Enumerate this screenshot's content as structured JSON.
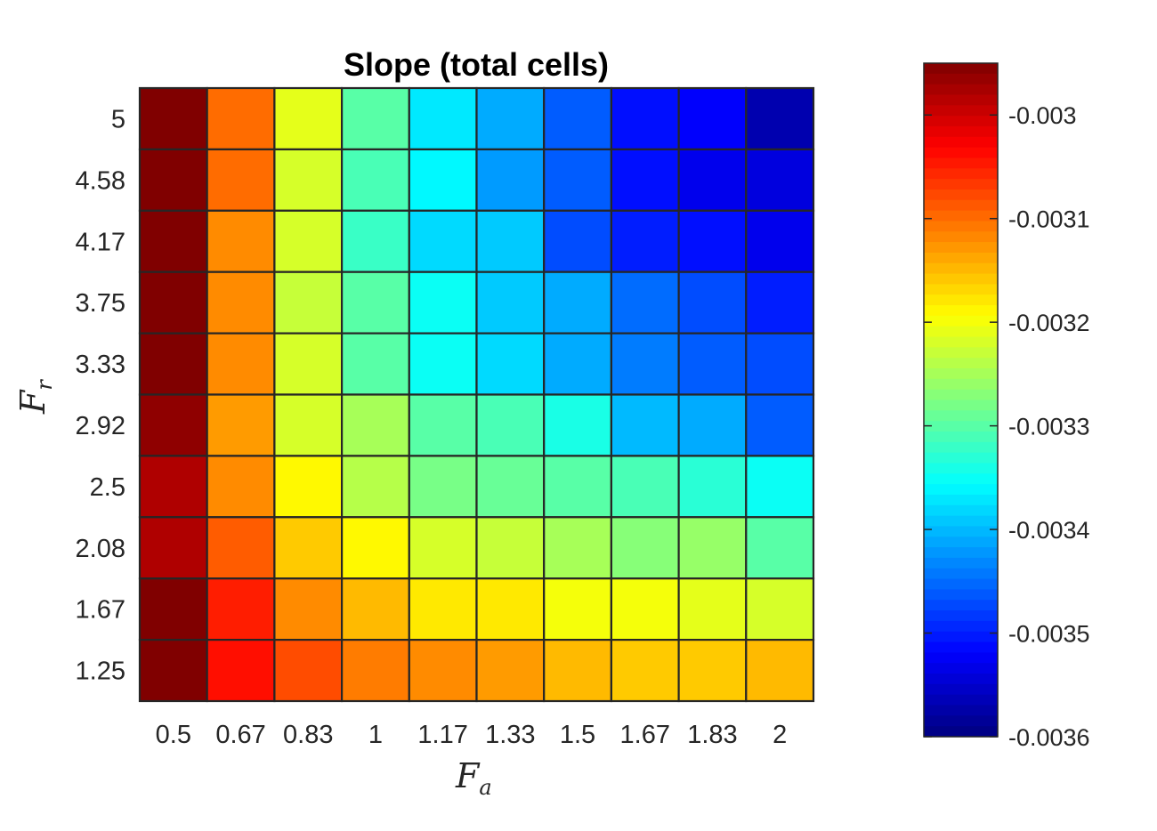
{
  "chart_data": {
    "type": "heatmap",
    "title": "Slope (total cells)",
    "xlabel": "F",
    "xlabel_subscript": "a",
    "ylabel": "F",
    "ylabel_subscript": "r",
    "x_categories": [
      "0.5",
      "0.67",
      "0.83",
      "1",
      "1.17",
      "1.33",
      "1.5",
      "1.67",
      "1.83",
      "2"
    ],
    "y_categories_top_to_bottom": [
      "5",
      "4.58",
      "4.17",
      "3.75",
      "3.33",
      "2.92",
      "2.5",
      "2.08",
      "1.67",
      "1.25"
    ],
    "values_top_to_bottom": [
      [
        -0.0029,
        -0.0031,
        -0.00321,
        -0.0033,
        -0.00337,
        -0.00341,
        -0.00346,
        -0.00351,
        -0.00352,
        -0.00357
      ],
      [
        -0.00292,
        -0.0031,
        -0.00322,
        -0.00331,
        -0.00336,
        -0.00342,
        -0.00346,
        -0.00351,
        -0.00353,
        -0.00354
      ],
      [
        -0.00294,
        -0.00312,
        -0.00322,
        -0.00332,
        -0.00338,
        -0.00339,
        -0.00347,
        -0.0035,
        -0.00351,
        -0.00353
      ],
      [
        -0.00293,
        -0.00312,
        -0.00323,
        -0.0033,
        -0.00335,
        -0.00339,
        -0.00341,
        -0.00345,
        -0.00347,
        -0.0035
      ],
      [
        -0.00294,
        -0.00312,
        -0.00322,
        -0.0033,
        -0.00335,
        -0.00338,
        -0.00341,
        -0.00344,
        -0.00346,
        -0.00347
      ],
      [
        -0.00296,
        -0.00313,
        -0.00322,
        -0.00325,
        -0.0033,
        -0.00331,
        -0.00334,
        -0.0034,
        -0.00341,
        -0.00346
      ],
      [
        -0.00298,
        -0.00312,
        -0.00319,
        -0.00324,
        -0.00328,
        -0.00329,
        -0.0033,
        -0.00331,
        -0.00333,
        -0.00335
      ],
      [
        -0.00298,
        -0.00309,
        -0.00316,
        -0.00319,
        -0.00322,
        -0.00323,
        -0.00325,
        -0.00327,
        -0.00326,
        -0.0033
      ],
      [
        -0.00295,
        -0.00305,
        -0.00312,
        -0.00315,
        -0.00318,
        -0.00318,
        -0.0032,
        -0.0032,
        -0.00321,
        -0.00322
      ],
      [
        -0.00294,
        -0.00304,
        -0.00308,
        -0.00311,
        -0.00312,
        -0.00313,
        -0.00315,
        -0.00316,
        -0.00316,
        -0.00315
      ]
    ],
    "colormap": "jet",
    "clim": [
      -0.0036,
      -0.00295
    ],
    "colorbar_ticks": [
      -0.003,
      -0.0031,
      -0.0032,
      -0.0033,
      -0.0034,
      -0.0035,
      -0.0036
    ],
    "colorbar_tick_labels": [
      "-0.003",
      "-0.0031",
      "-0.0032",
      "-0.0033",
      "-0.0034",
      "-0.0035",
      "-0.0036"
    ],
    "cell_edge_color": "#262626",
    "grid": true,
    "legend": "colorbar right"
  }
}
